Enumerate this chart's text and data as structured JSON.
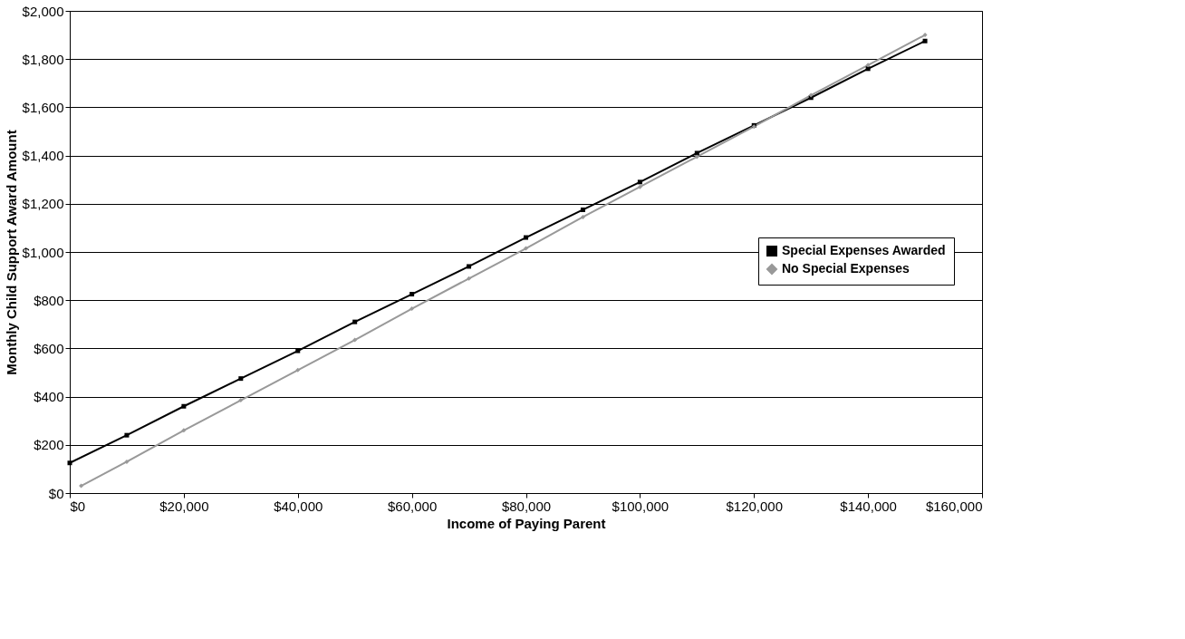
{
  "chart_data": {
    "type": "line",
    "xlabel": "Income of Paying Parent",
    "ylabel": "Monthly Child Support Award Amount",
    "xlim": [
      0,
      160000
    ],
    "ylim": [
      0,
      2000
    ],
    "xticks": [
      {
        "value": 0,
        "label": "$0"
      },
      {
        "value": 20000,
        "label": "$20,000"
      },
      {
        "value": 40000,
        "label": "$40,000"
      },
      {
        "value": 60000,
        "label": "$60,000"
      },
      {
        "value": 80000,
        "label": "$80,000"
      },
      {
        "value": 100000,
        "label": "$100,000"
      },
      {
        "value": 120000,
        "label": "$120,000"
      },
      {
        "value": 140000,
        "label": "$140,000"
      },
      {
        "value": 160000,
        "label": "$160,000"
      }
    ],
    "yticks": [
      {
        "value": 0,
        "label": "$0"
      },
      {
        "value": 200,
        "label": "$200"
      },
      {
        "value": 400,
        "label": "$400"
      },
      {
        "value": 600,
        "label": "$600"
      },
      {
        "value": 800,
        "label": "$800"
      },
      {
        "value": 1000,
        "label": "$1,000"
      },
      {
        "value": 1200,
        "label": "$1,200"
      },
      {
        "value": 1400,
        "label": "$1,400"
      },
      {
        "value": 1600,
        "label": "$1,600"
      },
      {
        "value": 1800,
        "label": "$1,800"
      },
      {
        "value": 2000,
        "label": "$2,000"
      }
    ],
    "grid": "y",
    "legend": "right",
    "series": [
      {
        "name": "Special Expenses Awarded",
        "color": "#000000",
        "marker": "square",
        "x": [
          0,
          10000,
          20000,
          30000,
          40000,
          50000,
          60000,
          70000,
          80000,
          90000,
          100000,
          110000,
          120000,
          130000,
          140000,
          150000
        ],
        "values": [
          125,
          240,
          360,
          475,
          590,
          710,
          825,
          940,
          1060,
          1175,
          1290,
          1410,
          1525,
          1640,
          1760,
          1875
        ]
      },
      {
        "name": "No Special Expenses",
        "color": "#999999",
        "marker": "diamond",
        "x": [
          2000,
          10000,
          20000,
          30000,
          40000,
          50000,
          60000,
          70000,
          80000,
          90000,
          100000,
          110000,
          120000,
          130000,
          140000,
          150000
        ],
        "values": [
          30,
          130,
          260,
          385,
          510,
          635,
          765,
          890,
          1015,
          1145,
          1270,
          1395,
          1520,
          1650,
          1775,
          1900
        ]
      }
    ]
  }
}
